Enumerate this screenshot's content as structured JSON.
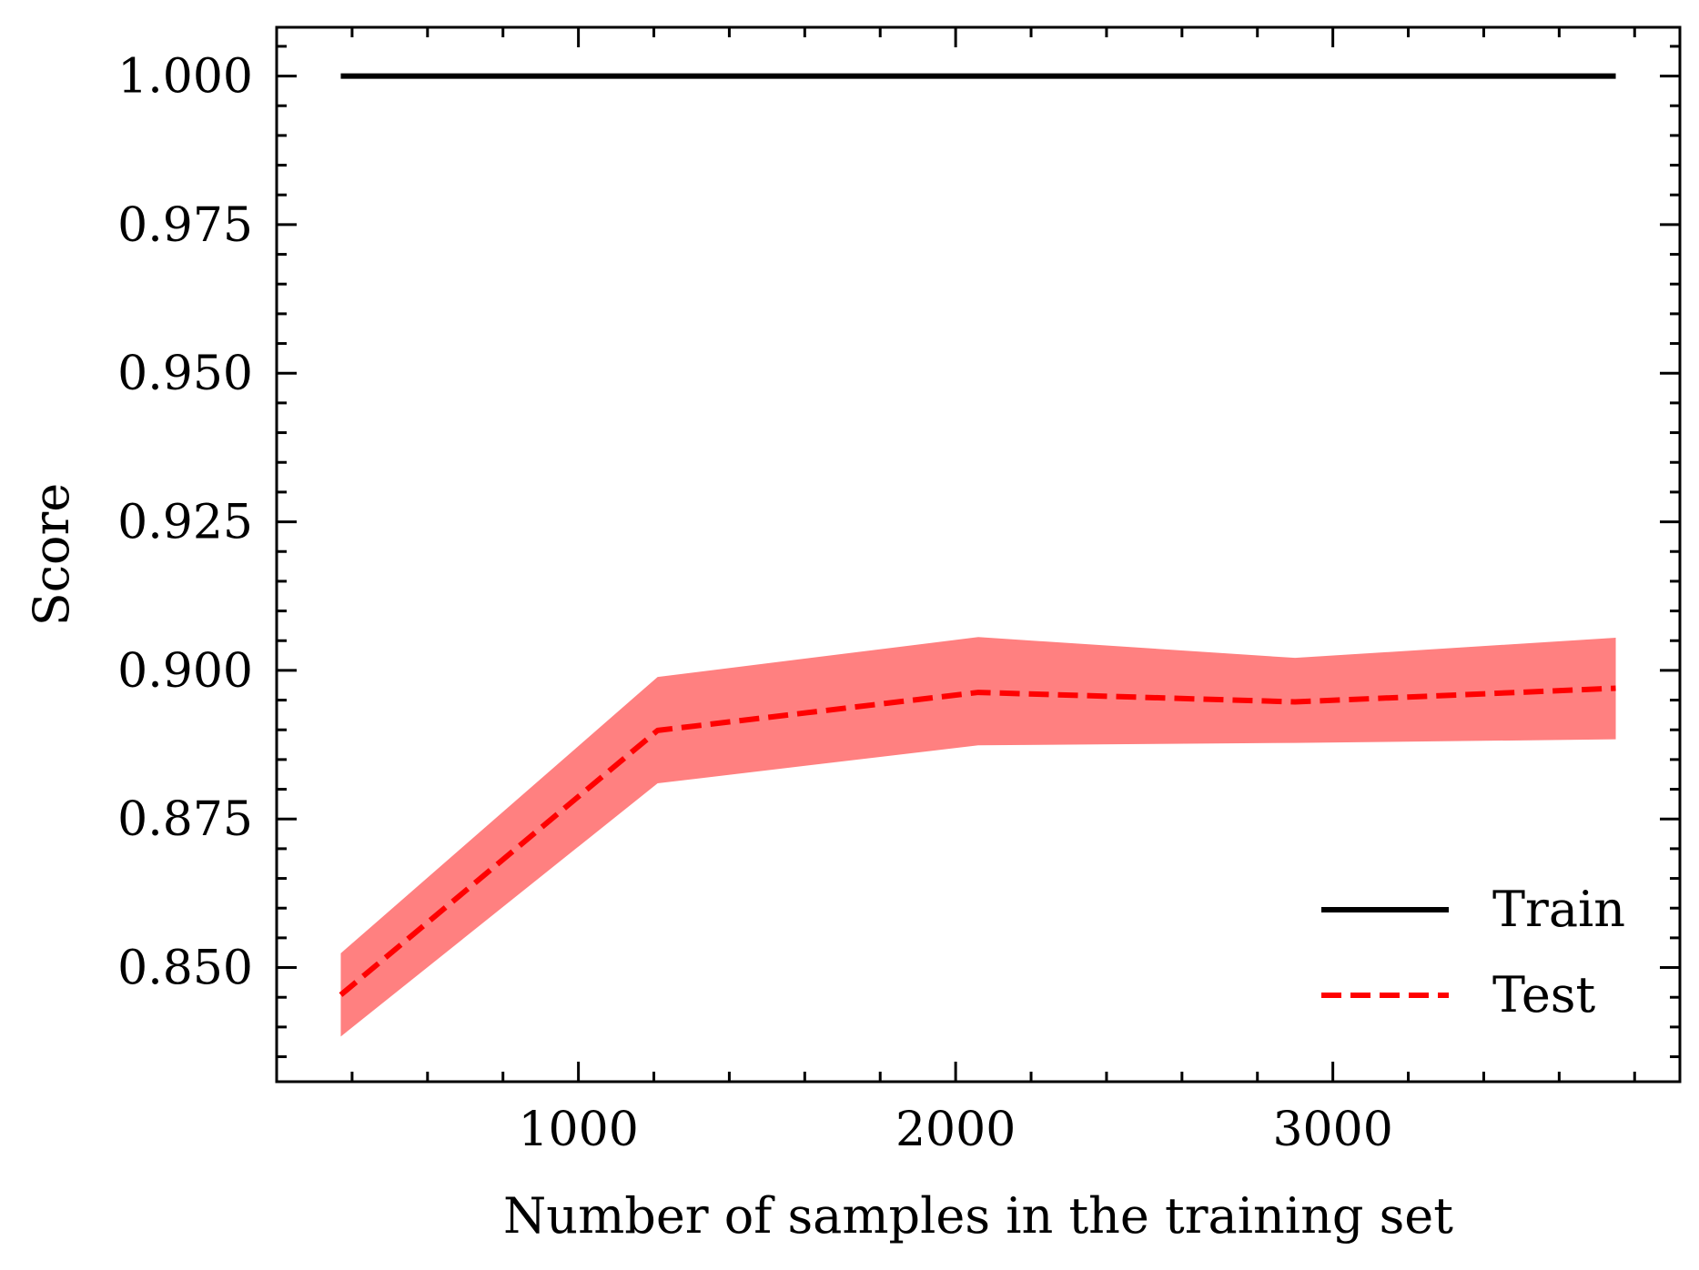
{
  "chart_data": {
    "type": "line",
    "title": "",
    "xlabel": "Number of samples in the training set",
    "ylabel": "Score",
    "xlim": [
      200,
      3920
    ],
    "ylim": [
      0.8308,
      1.0082
    ],
    "xticks": [
      1000,
      2000,
      3000
    ],
    "xtick_labels": [
      "1000",
      "2000",
      "3000"
    ],
    "yticks": [
      0.85,
      0.875,
      0.9,
      0.925,
      0.95,
      0.975,
      1.0
    ],
    "ytick_labels": [
      "0.850",
      "0.875",
      "0.900",
      "0.925",
      "0.950",
      "0.975",
      "1.000"
    ],
    "grid": false,
    "legend": "lower-right",
    "x": [
      370,
      1210,
      2060,
      2900,
      3750
    ],
    "series": [
      {
        "name": "Train",
        "values": [
          1.0,
          1.0,
          1.0,
          1.0,
          1.0
        ],
        "color": "#000000",
        "style": "solid"
      },
      {
        "name": "Test",
        "values": [
          0.8454,
          0.8899,
          0.8963,
          0.8947,
          0.897
        ],
        "lower": [
          0.8384,
          0.881,
          0.8874,
          0.8878,
          0.8884
        ],
        "upper": [
          0.8524,
          0.8989,
          0.9056,
          0.9021,
          0.9055
        ],
        "color": "#ff0000",
        "band_color": "#ff8080",
        "style": "dashed"
      }
    ]
  }
}
